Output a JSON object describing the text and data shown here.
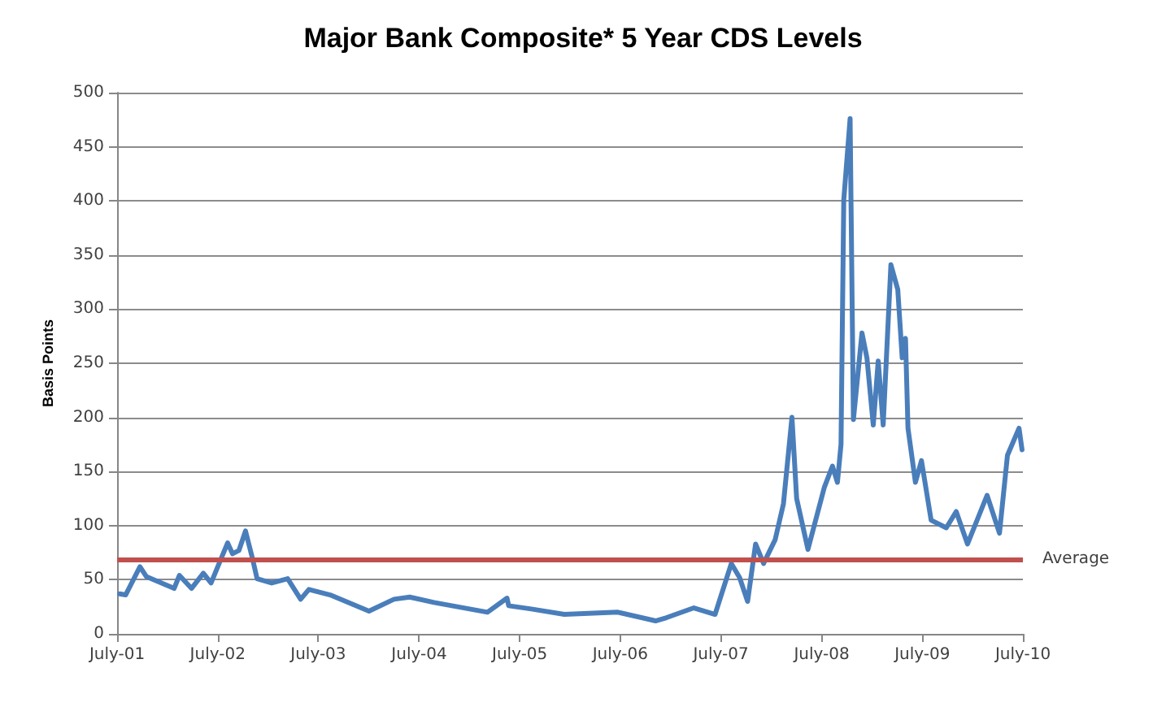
{
  "chart_data": {
    "type": "line",
    "title": "Major Bank Composite* 5 Year CDS Levels",
    "ylabel": "Basis Points",
    "x": [
      "2001-07-10",
      "2001-08-01",
      "2001-09-22",
      "2001-10-15",
      "2002-01-24",
      "2002-02-12",
      "2002-03-28",
      "2002-05-10",
      "2002-06-07",
      "2002-08-06",
      "2002-08-24",
      "2002-09-16",
      "2002-10-10",
      "2002-11-03",
      "2002-11-21",
      "2003-01-13",
      "2003-03-12",
      "2003-04-28",
      "2003-05-28",
      "2003-08-13",
      "2004-01-01",
      "2004-04-01",
      "2004-05-28",
      "2004-08-24",
      "2005-03-06",
      "2005-05-16",
      "2005-05-22",
      "2005-08-12",
      "2005-12-10",
      "2006-06-22",
      "2006-11-06",
      "2006-12-16",
      "2007-03-25",
      "2007-06-10",
      "2007-08-08",
      "2007-09-07",
      "2007-10-06",
      "2007-11-04",
      "2007-12-03",
      "2008-01-14",
      "2008-02-13",
      "2008-03-15",
      "2008-04-01",
      "2008-05-12",
      "2008-07-10",
      "2008-08-09",
      "2008-08-27",
      "2008-09-09",
      "2008-09-19",
      "2008-10-12",
      "2008-10-24",
      "2008-11-24",
      "2008-12-12",
      "2009-01-04",
      "2009-01-22",
      "2009-02-09",
      "2009-03-09",
      "2009-04-03",
      "2009-04-19",
      "2009-05-01",
      "2009-05-10",
      "2009-06-06",
      "2009-06-28",
      "2009-08-02",
      "2009-09-26",
      "2009-11-01",
      "2009-12-12",
      "2010-02-21",
      "2010-04-07",
      "2010-05-06",
      "2010-06-17",
      "2010-06-28"
    ],
    "series": [
      {
        "color": "#4a7ebb",
        "values": [
          37,
          36,
          62,
          53,
          42,
          54,
          42,
          56,
          47,
          84,
          74,
          77,
          95,
          71,
          51,
          47,
          51,
          32,
          41,
          36,
          21,
          32,
          34,
          29,
          20,
          33,
          26,
          23,
          18,
          20,
          12,
          15,
          24,
          18,
          65,
          52,
          30,
          83,
          65,
          87,
          120,
          200,
          125,
          78,
          135,
          155,
          140,
          175,
          401,
          476,
          198,
          278,
          255,
          193,
          252,
          193,
          341,
          318,
          255,
          273,
          190,
          140,
          160,
          105,
          98,
          113,
          83,
          128,
          93,
          165,
          190,
          170
        ]
      }
    ],
    "xlim": [
      "2001-07-01",
      "2010-07-01"
    ],
    "xticks": [
      {
        "value": "2001-07-01",
        "label": "July-01"
      },
      {
        "value": "2002-07-01",
        "label": "July-02"
      },
      {
        "value": "2003-07-01",
        "label": "July-03"
      },
      {
        "value": "2004-07-01",
        "label": "July-04"
      },
      {
        "value": "2005-07-01",
        "label": "July-05"
      },
      {
        "value": "2006-07-01",
        "label": "July-06"
      },
      {
        "value": "2007-07-01",
        "label": "July-07"
      },
      {
        "value": "2008-07-01",
        "label": "July-08"
      },
      {
        "value": "2009-07-01",
        "label": "July-09"
      },
      {
        "value": "2010-07-01",
        "label": "July-10"
      }
    ],
    "ylim": [
      0,
      500
    ],
    "yticks": [
      0,
      50,
      100,
      150,
      200,
      250,
      300,
      350,
      400,
      450,
      500
    ],
    "grid": "y",
    "marker": "none",
    "line_style": "solid",
    "ref_lines": [
      {
        "axis": "y",
        "value": 69,
        "label": "Average",
        "color": "#c0504d"
      }
    ]
  }
}
